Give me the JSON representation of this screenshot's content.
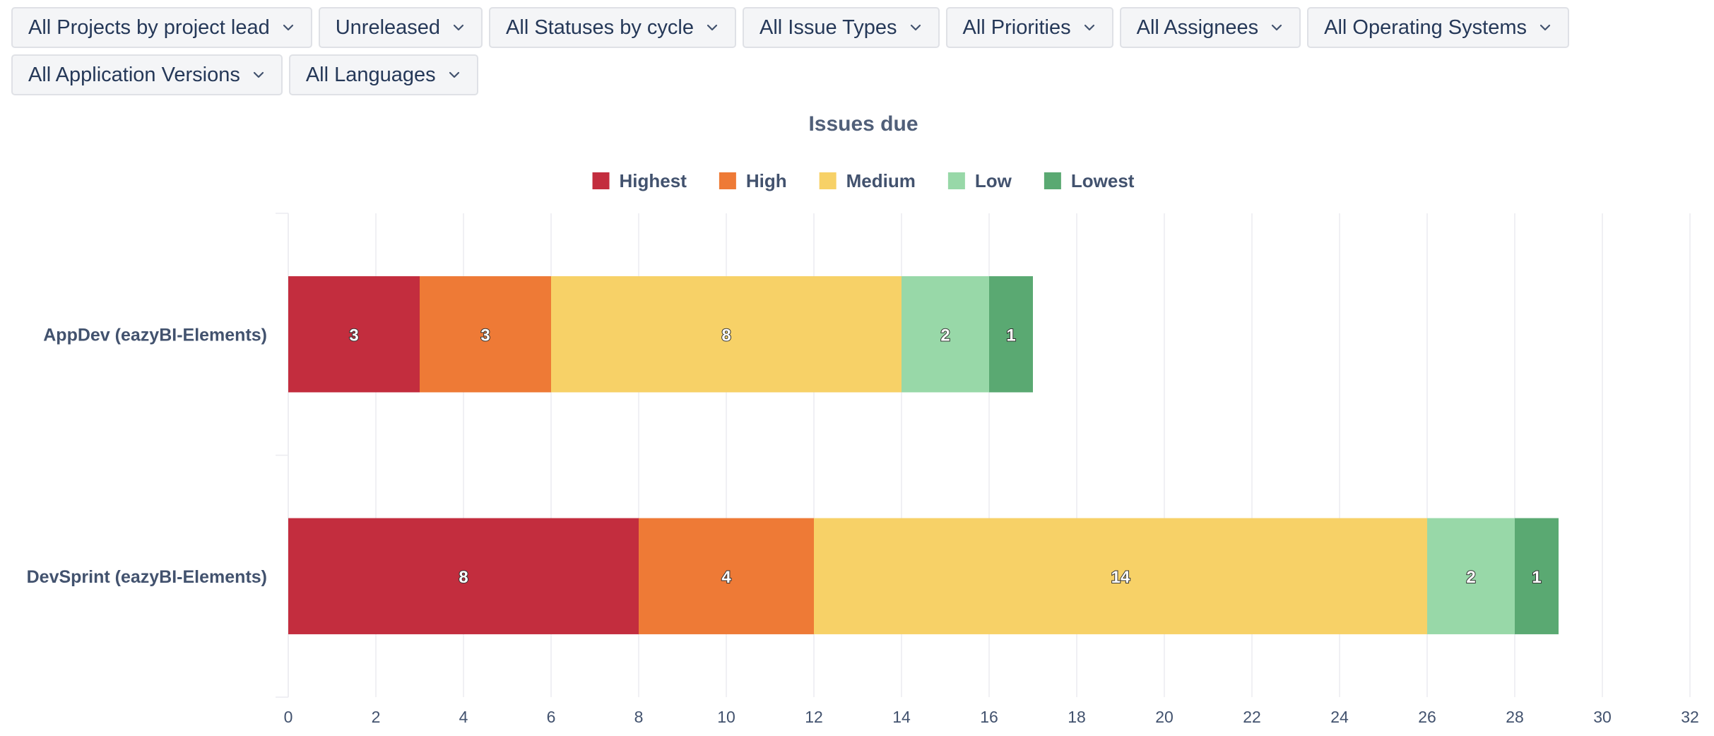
{
  "filters": {
    "row1": [
      {
        "label": "All Projects by project lead",
        "name": "filter-projects"
      },
      {
        "label": "Unreleased",
        "name": "filter-releases"
      },
      {
        "label": "All Statuses by cycle",
        "name": "filter-statuses"
      },
      {
        "label": "All Issue Types",
        "name": "filter-issue-types"
      },
      {
        "label": "All Priorities",
        "name": "filter-priorities"
      },
      {
        "label": "All Assignees",
        "name": "filter-assignees"
      },
      {
        "label": "All Operating Systems",
        "name": "filter-operating-systems"
      }
    ],
    "row2": [
      {
        "label": "All Application Versions",
        "name": "filter-application-versions"
      },
      {
        "label": "All Languages",
        "name": "filter-languages"
      }
    ],
    "chevron_icon": "chevron-down-icon"
  },
  "chart_data": {
    "type": "bar",
    "orientation": "horizontal",
    "stacked": true,
    "title": "Issues due",
    "categories": [
      "AppDev (eazyBI-Elements)",
      "DevSprint (eazyBI-Elements)"
    ],
    "series": [
      {
        "name": "Highest",
        "color": "#c32d3e",
        "values": [
          3,
          8
        ]
      },
      {
        "name": "High",
        "color": "#ee7a36",
        "values": [
          3,
          4
        ]
      },
      {
        "name": "Medium",
        "color": "#f7d167",
        "values": [
          8,
          14
        ]
      },
      {
        "name": "Low",
        "color": "#98d8a8",
        "values": [
          2,
          2
        ]
      },
      {
        "name": "Lowest",
        "color": "#5aa972",
        "values": [
          1,
          1
        ]
      }
    ],
    "xlim": [
      0,
      32
    ],
    "xticks": [
      0,
      2,
      4,
      6,
      8,
      10,
      12,
      14,
      16,
      18,
      20,
      22,
      24,
      26,
      28,
      30,
      32
    ],
    "xlabel": "",
    "ylabel": "",
    "grid": true,
    "legend_position": "top-center",
    "data_labels": true
  }
}
